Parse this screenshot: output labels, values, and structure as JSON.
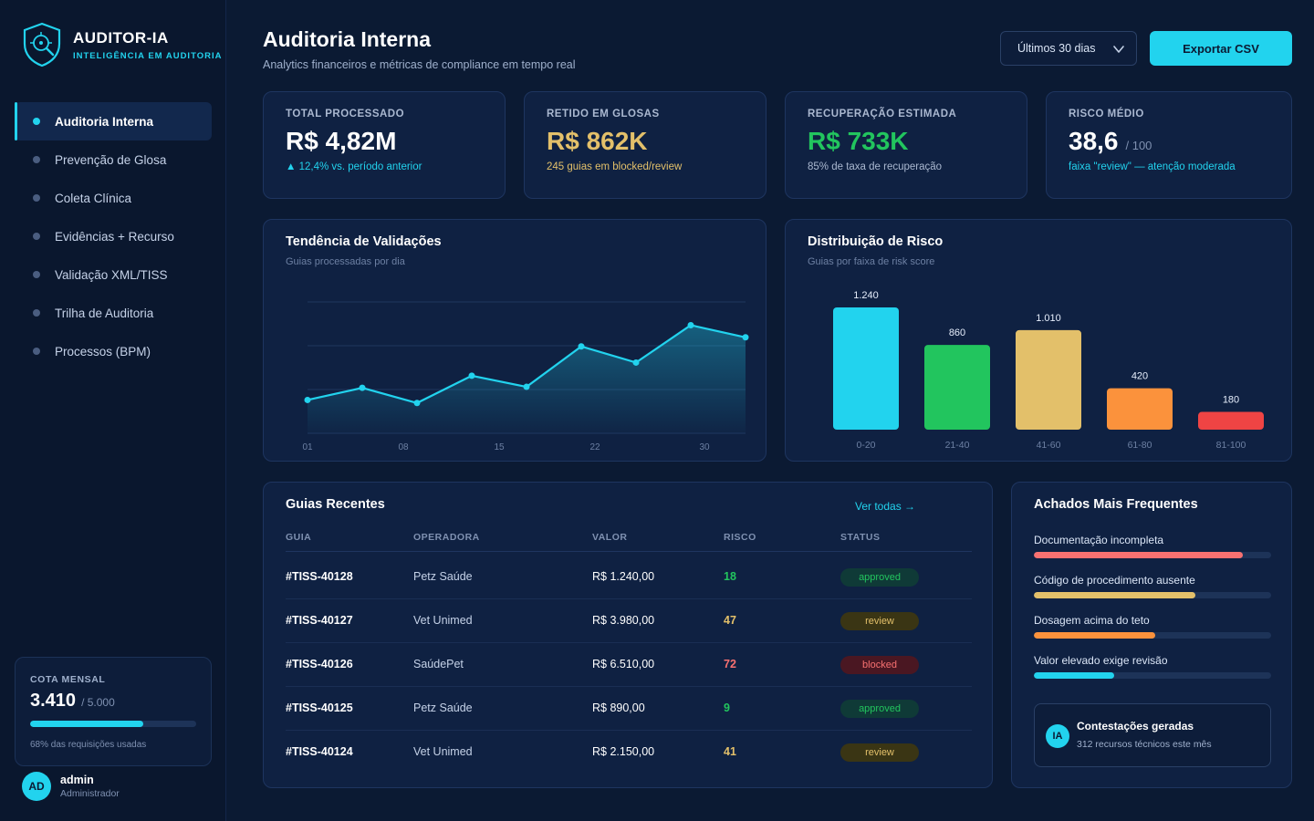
{
  "brand": {
    "name": "AUDITOR-IA",
    "tagline": "INTELIGÊNCIA EM AUDITORIA"
  },
  "sidebar": {
    "items": [
      {
        "label": "Auditoria Interna",
        "active": true
      },
      {
        "label": "Prevenção de Glosa",
        "active": false
      },
      {
        "label": "Coleta Clínica",
        "active": false
      },
      {
        "label": "Evidências + Recurso",
        "active": false
      },
      {
        "label": "Validação XML/TISS",
        "active": false
      },
      {
        "label": "Trilha de Auditoria",
        "active": false
      },
      {
        "label": "Processos (BPM)",
        "active": false
      }
    ],
    "quota": {
      "label": "COTA MENSAL",
      "value": "3.410",
      "total": "/ 5.000",
      "percent": 68,
      "note": "68% das requisições usadas"
    },
    "user": {
      "initials": "AD",
      "name": "admin",
      "role": "Administrador"
    }
  },
  "header": {
    "title": "Auditoria Interna",
    "subtitle": "Analytics financeiros e métricas de compliance em tempo real",
    "period": "Últimos 30 dias",
    "export_label": "Exportar CSV"
  },
  "kpis": [
    {
      "label": "TOTAL PROCESSADO",
      "value": "R$ 4,82M",
      "unit": "",
      "note": "▲ 12,4% vs. período anterior",
      "value_color": "#ffffff",
      "note_color": "#22d3ee"
    },
    {
      "label": "RETIDO EM GLOSAS",
      "value": "R$ 862K",
      "unit": "",
      "note": "245 guias em blocked/review",
      "value_color": "#e3c06a",
      "note_color": "#e3c06a"
    },
    {
      "label": "RECUPERAÇÃO ESTIMADA",
      "value": "R$ 733K",
      "unit": "",
      "note": "85% de taxa de recuperação",
      "value_color": "#22c55e",
      "note_color": "#aab8d0"
    },
    {
      "label": "RISCO MÉDIO",
      "value": "38,6",
      "unit": "/ 100",
      "note": "faixa \"review\" — atenção moderada",
      "value_color": "#ffffff",
      "note_color": "#22d3ee"
    }
  ],
  "trend": {
    "title": "Tendência de Validações",
    "subtitle": "Guias processadas por dia"
  },
  "risk": {
    "title": "Distribuição de Risco",
    "subtitle": "Guias por faixa de risk score"
  },
  "chart_data": [
    {
      "type": "area",
      "title": "Tendência de Validações",
      "subtitle": "Guias processadas por dia",
      "x_ticks": [
        "01",
        "08",
        "15",
        "22",
        "30"
      ],
      "x": [
        1,
        5,
        9,
        13,
        17,
        21,
        25,
        29,
        33
      ],
      "values": [
        33,
        45,
        30,
        57,
        46,
        86,
        70,
        107,
        95
      ],
      "ylim": [
        0,
        130
      ],
      "grid": true,
      "color": "#22d3ee"
    },
    {
      "type": "bar",
      "title": "Distribuição de Risco",
      "subtitle": "Guias por faixa de risk score",
      "categories": [
        "0-20",
        "21-40",
        "41-60",
        "61-80",
        "81-100"
      ],
      "values": [
        1240,
        860,
        1010,
        420,
        180
      ],
      "labels": [
        "1.240",
        "860",
        "1.010",
        "420",
        "180"
      ],
      "colors": [
        "#22d3ee",
        "#22c55e",
        "#e3c06a",
        "#fb923c",
        "#ef4444"
      ],
      "ylim": [
        0,
        1240
      ]
    }
  ],
  "table": {
    "title": "Guias Recentes",
    "link": "Ver todas →",
    "columns": [
      "GUIA",
      "OPERADORA",
      "VALOR",
      "RISCO",
      "STATUS"
    ],
    "rows": [
      {
        "guia": "#TISS-40128",
        "operadora": "Petz Saúde",
        "valor": "R$ 1.240,00",
        "risco": "18",
        "status": "approved",
        "risk_color": "#22c55e"
      },
      {
        "guia": "#TISS-40127",
        "operadora": "Vet Unimed",
        "valor": "R$ 3.980,00",
        "risco": "47",
        "status": "review",
        "risk_color": "#e3c06a"
      },
      {
        "guia": "#TISS-40126",
        "operadora": "SaúdePet",
        "valor": "R$ 6.510,00",
        "risco": "72",
        "status": "blocked",
        "risk_color": "#f87171"
      },
      {
        "guia": "#TISS-40125",
        "operadora": "Petz Saúde",
        "valor": "R$ 890,00",
        "risco": "9",
        "status": "approved",
        "risk_color": "#22c55e"
      },
      {
        "guia": "#TISS-40124",
        "operadora": "Vet Unimed",
        "valor": "R$ 2.150,00",
        "risco": "41",
        "status": "review",
        "risk_color": "#e3c06a"
      }
    ]
  },
  "findings": {
    "title": "Achados Mais Frequentes",
    "items": [
      {
        "label": "Documentação incompleta",
        "percent": 88,
        "color": "#f87171"
      },
      {
        "label": "Código de procedimento ausente",
        "percent": 68,
        "color": "#e3c06a"
      },
      {
        "label": "Dosagem acima do teto",
        "percent": 51,
        "color": "#fb923c"
      },
      {
        "label": "Valor elevado exige revisão",
        "percent": 34,
        "color": "#22d3ee"
      }
    ],
    "contest": {
      "badge": "IA",
      "title": "Contestações geradas",
      "subtitle": "312 recursos técnicos este mês"
    }
  }
}
